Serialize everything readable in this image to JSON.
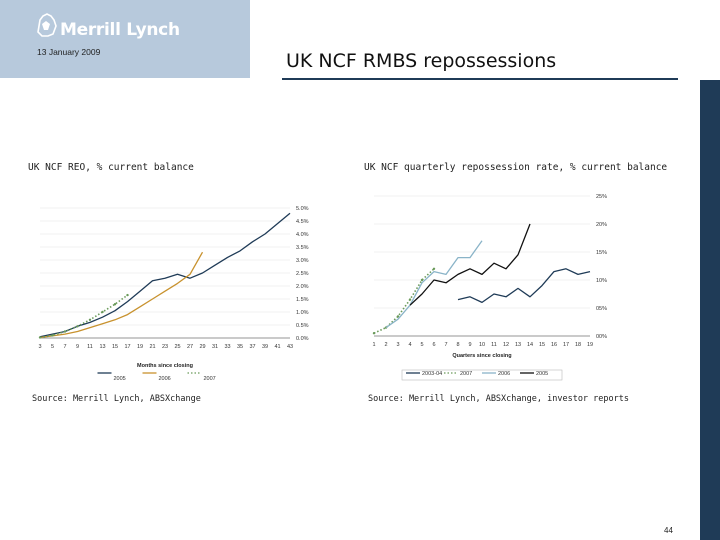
{
  "header": {
    "logo_text": "Merrill Lynch",
    "date": "13 January 2009",
    "title": "UK NCF RMBS repossessions"
  },
  "page_number": "44",
  "colors": {
    "header_box": "#b7c9dc",
    "accent_bar": "#1f3b57"
  },
  "chart_data": [
    {
      "type": "line",
      "title": "UK NCF REO, % current balance",
      "source": "Source: Merrill Lynch, ABSXchange",
      "xlabel": "Months since closing",
      "ylabel": "",
      "x_ticks": [
        "3",
        "5",
        "7",
        "9",
        "11",
        "13",
        "15",
        "17",
        "19",
        "21",
        "23",
        "25",
        "27",
        "29",
        "31",
        "33",
        "35",
        "37",
        "39",
        "41",
        "43"
      ],
      "y_ticks": [
        "0.0%",
        "0.5%",
        "1.0%",
        "1.5%",
        "2.0%",
        "2.5%",
        "3.0%",
        "3.5%",
        "4.0%",
        "4.5%",
        "5.0%"
      ],
      "xlim": [
        3,
        43
      ],
      "ylim": [
        0,
        5.0
      ],
      "y_axis_side": "right",
      "legend_position": "bottom",
      "series": [
        {
          "name": "2005",
          "color": "#1f3b57",
          "style": "solid",
          "x": [
            3,
            5,
            7,
            9,
            11,
            13,
            15,
            17,
            19,
            21,
            23,
            25,
            27,
            29,
            31,
            33,
            35,
            37,
            39,
            41,
            43
          ],
          "values": [
            0.05,
            0.15,
            0.25,
            0.45,
            0.6,
            0.8,
            1.05,
            1.4,
            1.8,
            2.2,
            2.3,
            2.45,
            2.3,
            2.5,
            2.8,
            3.1,
            3.35,
            3.7,
            4.0,
            4.4,
            4.8
          ]
        },
        {
          "name": "2006",
          "color": "#c8922e",
          "style": "solid",
          "x": [
            3,
            5,
            7,
            9,
            11,
            13,
            15,
            17,
            19,
            21,
            23,
            25,
            27,
            29
          ],
          "values": [
            0.02,
            0.08,
            0.15,
            0.25,
            0.4,
            0.55,
            0.7,
            0.9,
            1.2,
            1.5,
            1.8,
            2.1,
            2.45,
            3.3
          ]
        },
        {
          "name": "2007",
          "color": "#6a9a5a",
          "style": "dotted",
          "x": [
            3,
            5,
            7,
            9,
            11,
            13,
            15,
            17
          ],
          "values": [
            0.02,
            0.1,
            0.25,
            0.45,
            0.7,
            1.0,
            1.3,
            1.65
          ]
        }
      ]
    },
    {
      "type": "line",
      "title": "UK NCF quarterly repossession rate, % current balance",
      "source": "Source: Merrill Lynch, ABSXchange, investor reports",
      "xlabel": "Quarters since closing",
      "ylabel": "",
      "x_ticks": [
        "1",
        "2",
        "3",
        "4",
        "5",
        "6",
        "7",
        "8",
        "9",
        "10",
        "11",
        "12",
        "13",
        "14",
        "15",
        "16",
        "17",
        "18",
        "19"
      ],
      "y_ticks": [
        "00%",
        "05%",
        "10%",
        "15%",
        "20%",
        "25%"
      ],
      "xlim": [
        1,
        19
      ],
      "ylim": [
        0,
        25
      ],
      "y_axis_side": "right",
      "legend_position": "bottom",
      "series": [
        {
          "name": "2003-04",
          "color": "#1f3b57",
          "style": "solid",
          "x": [
            8,
            9,
            10,
            11,
            12,
            13,
            14,
            15,
            16,
            17,
            18,
            19
          ],
          "values": [
            6.5,
            7.0,
            6.0,
            7.5,
            7.0,
            8.5,
            7.0,
            9.0,
            11.5,
            12.0,
            11.0,
            11.5
          ]
        },
        {
          "name": "2007",
          "color": "#6a9a5a",
          "style": "dotted",
          "x": [
            1,
            2,
            3,
            4,
            5,
            6
          ],
          "values": [
            0.5,
            1.5,
            3.5,
            6.5,
            10.0,
            12.0
          ]
        },
        {
          "name": "2006",
          "color": "#8ab4c8",
          "style": "solid",
          "x": [
            2,
            3,
            4,
            5,
            6,
            7,
            8,
            9,
            10
          ],
          "values": [
            1.5,
            3.0,
            5.5,
            9.5,
            11.5,
            11.0,
            14.0,
            14.0,
            17.0
          ]
        },
        {
          "name": "2005",
          "color": "#111111",
          "style": "solid",
          "x": [
            4,
            5,
            6,
            7,
            8,
            9,
            10,
            11,
            12,
            13,
            14
          ],
          "values": [
            5.5,
            7.5,
            10.0,
            9.5,
            11.0,
            12.0,
            11.0,
            13.0,
            12.0,
            14.5,
            20.0
          ]
        }
      ]
    }
  ]
}
